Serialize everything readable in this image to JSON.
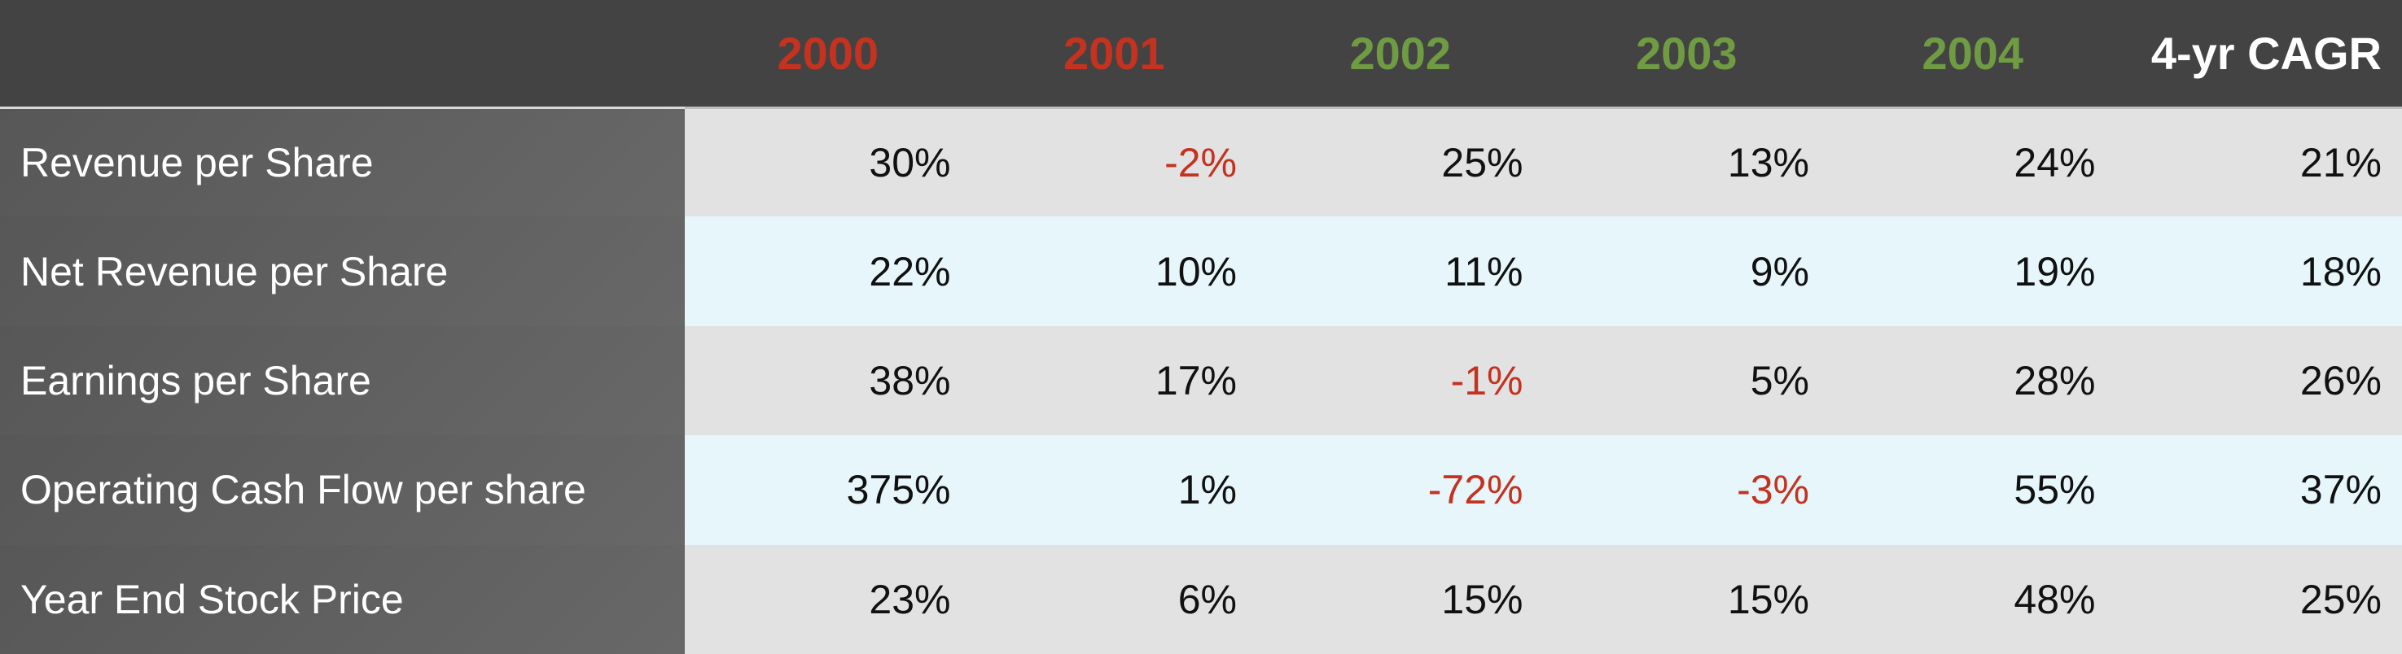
{
  "table": {
    "header": [
      "2000",
      "2001",
      "2002",
      "2003",
      "2004",
      "4-yr CAGR"
    ],
    "rows": [
      {
        "label": "Revenue per Share",
        "values": [
          "30%",
          "-2%",
          "25%",
          "13%",
          "24%",
          "21%"
        ]
      },
      {
        "label": "Net Revenue per Share",
        "values": [
          "22%",
          "10%",
          "11%",
          "9%",
          "19%",
          "18%"
        ]
      },
      {
        "label": "Earnings per Share",
        "values": [
          "38%",
          "17%",
          "-1%",
          "5%",
          "28%",
          "26%"
        ]
      },
      {
        "label": "Operating Cash Flow per share",
        "values": [
          "375%",
          "1%",
          "-72%",
          "-3%",
          "55%",
          "37%"
        ]
      },
      {
        "label": "Year End Stock Price",
        "values": [
          "23%",
          "6%",
          "15%",
          "15%",
          "48%",
          "25%"
        ]
      }
    ]
  }
}
